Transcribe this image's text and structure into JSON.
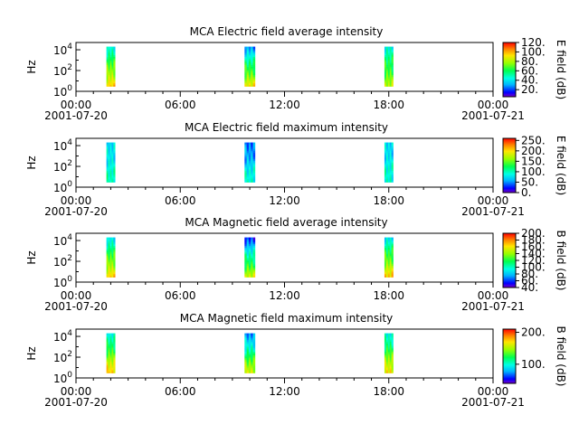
{
  "chart_data": [
    {
      "type": "heatmap",
      "title": "MCA  Electric field average intensity",
      "ylabel": "Hz",
      "xlabel": "",
      "y_scale": "log",
      "y_ticks": [
        {
          "exp": "0",
          "value": 1
        },
        {
          "exp": "2",
          "value": 100
        },
        {
          "exp": "4",
          "value": 10000
        }
      ],
      "x_ticks": [
        {
          "time": "00:00",
          "date": "2001-07-20"
        },
        {
          "time": "06:00",
          "date": ""
        },
        {
          "time": "12:00",
          "date": ""
        },
        {
          "time": "18:00",
          "date": ""
        },
        {
          "time": "00:00",
          "date": "2001-07-21"
        }
      ],
      "x_range_hours": [
        0,
        24
      ],
      "colorbar": {
        "label": "E field (dB)",
        "range": [
          5,
          120
        ],
        "ticks": [
          "20.",
          "40.",
          "60.",
          "80.",
          "100.",
          "120."
        ],
        "tick_values": [
          20,
          40,
          60,
          80,
          100,
          120
        ]
      },
      "data_blocks": [
        {
          "start_hour": 1.75,
          "end_hour": 2.25,
          "freq_range": [
            3,
            20000
          ],
          "level_low_freq": 95,
          "level_high_freq": 45
        },
        {
          "start_hour": 9.7,
          "end_hour": 10.3,
          "freq_range": [
            3,
            20000
          ],
          "level_low_freq": 90,
          "level_high_freq": 30
        },
        {
          "start_hour": 17.75,
          "end_hour": 18.25,
          "freq_range": [
            3,
            20000
          ],
          "level_low_freq": 80,
          "level_high_freq": 45
        }
      ]
    },
    {
      "type": "heatmap",
      "title": "MCA  Electric field maximum intensity",
      "ylabel": "Hz",
      "xlabel": "",
      "y_scale": "log",
      "y_ticks": [
        {
          "exp": "0",
          "value": 1
        },
        {
          "exp": "2",
          "value": 100
        },
        {
          "exp": "4",
          "value": 10000
        }
      ],
      "x_ticks": [
        {
          "time": "00:00",
          "date": "2001-07-20"
        },
        {
          "time": "06:00",
          "date": ""
        },
        {
          "time": "12:00",
          "date": ""
        },
        {
          "time": "18:00",
          "date": ""
        },
        {
          "time": "00:00",
          "date": "2001-07-21"
        }
      ],
      "x_range_hours": [
        0,
        24
      ],
      "colorbar": {
        "label": "E field (dB)",
        "range": [
          0,
          260
        ],
        "ticks": [
          "0.",
          "50.",
          "100.",
          "150.",
          "200.",
          "250."
        ],
        "tick_values": [
          0,
          50,
          100,
          150,
          200,
          250
        ]
      },
      "data_blocks": [
        {
          "start_hour": 1.75,
          "end_hour": 2.25,
          "freq_range": [
            3,
            20000
          ],
          "level_low_freq": 100,
          "level_high_freq": 70
        },
        {
          "start_hour": 9.7,
          "end_hour": 10.3,
          "freq_range": [
            3,
            20000
          ],
          "level_low_freq": 95,
          "level_high_freq": 40
        },
        {
          "start_hour": 17.75,
          "end_hour": 18.25,
          "freq_range": [
            3,
            20000
          ],
          "level_low_freq": 95,
          "level_high_freq": 70
        }
      ]
    },
    {
      "type": "heatmap",
      "title": "MCA  Magnetic field average intensity",
      "ylabel": "Hz",
      "xlabel": "",
      "y_scale": "log",
      "y_ticks": [
        {
          "exp": "0",
          "value": 1
        },
        {
          "exp": "2",
          "value": 100
        },
        {
          "exp": "4",
          "value": 10000
        }
      ],
      "x_ticks": [
        {
          "time": "00:00",
          "date": "2001-07-20"
        },
        {
          "time": "06:00",
          "date": ""
        },
        {
          "time": "12:00",
          "date": ""
        },
        {
          "time": "18:00",
          "date": ""
        },
        {
          "time": "00:00",
          "date": "2001-07-21"
        }
      ],
      "x_range_hours": [
        0,
        24
      ],
      "colorbar": {
        "label": "B field (dB)",
        "range": [
          40,
          200
        ],
        "ticks": [
          "40.",
          "60.",
          "80.",
          "100.",
          "120.",
          "140.",
          "160.",
          "180.",
          "200."
        ],
        "tick_values": [
          40,
          60,
          80,
          100,
          120,
          140,
          160,
          180,
          200
        ]
      },
      "data_blocks": [
        {
          "start_hour": 1.75,
          "end_hour": 2.25,
          "freq_range": [
            3,
            20000
          ],
          "level_low_freq": 165,
          "level_high_freq": 90
        },
        {
          "start_hour": 9.7,
          "end_hour": 10.3,
          "freq_range": [
            3,
            20000
          ],
          "level_low_freq": 150,
          "level_high_freq": 60
        },
        {
          "start_hour": 17.75,
          "end_hour": 18.25,
          "freq_range": [
            3,
            20000
          ],
          "level_low_freq": 165,
          "level_high_freq": 90
        }
      ]
    },
    {
      "type": "heatmap",
      "title": "MCA  Magnetic field maximum intensity",
      "ylabel": "Hz",
      "xlabel": "",
      "y_scale": "log",
      "y_ticks": [
        {
          "exp": "0",
          "value": 1
        },
        {
          "exp": "2",
          "value": 100
        },
        {
          "exp": "4",
          "value": 10000
        }
      ],
      "x_ticks": [
        {
          "time": "00:00",
          "date": "2001-07-20"
        },
        {
          "time": "06:00",
          "date": ""
        },
        {
          "time": "12:00",
          "date": ""
        },
        {
          "time": "18:00",
          "date": ""
        },
        {
          "time": "00:00",
          "date": "2001-07-21"
        }
      ],
      "x_range_hours": [
        0,
        24
      ],
      "colorbar": {
        "label": "B field (dB)",
        "range": [
          40,
          210
        ],
        "ticks": [
          "100.",
          "200."
        ],
        "tick_values": [
          100,
          200
        ]
      },
      "data_blocks": [
        {
          "start_hour": 1.75,
          "end_hour": 2.25,
          "freq_range": [
            3,
            20000
          ],
          "level_low_freq": 175,
          "level_high_freq": 95
        },
        {
          "start_hour": 9.7,
          "end_hour": 10.3,
          "freq_range": [
            3,
            20000
          ],
          "level_low_freq": 160,
          "level_high_freq": 70
        },
        {
          "start_hour": 17.75,
          "end_hour": 18.25,
          "freq_range": [
            3,
            20000
          ],
          "level_low_freq": 170,
          "level_high_freq": 95
        }
      ]
    }
  ]
}
